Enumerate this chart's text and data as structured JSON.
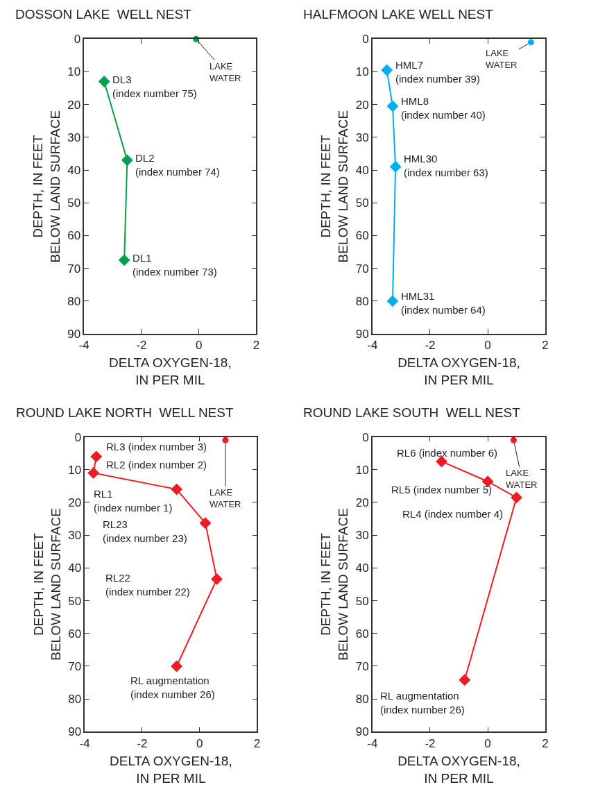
{
  "chart_data": [
    {
      "type": "line",
      "title": "DOSSON LAKE  WELL NEST",
      "xlabel": "DELTA OXYGEN-18,\nIN PER MIL",
      "ylabel": "DEPTH, IN FEET\nBELOW LAND SURFACE",
      "xlim": [
        -4,
        2
      ],
      "xticks": [
        -4,
        -2,
        0,
        2
      ],
      "ylim": [
        90,
        0
      ],
      "yticks": [
        0,
        10,
        20,
        30,
        40,
        50,
        60,
        70,
        80,
        90
      ],
      "line_style": "solid",
      "series": [
        {
          "color": "#00a04b",
          "marker": "diamond",
          "x": [
            -3.3,
            -2.5,
            -2.6
          ],
          "values": [
            13,
            37,
            67.5
          ]
        },
        {
          "type": "scatter",
          "color": "#00a04b",
          "marker": "circle",
          "x": [
            -0.1
          ],
          "values": [
            0
          ]
        }
      ],
      "annotations": [
        {
          "text": "DL3\n(index number 75)",
          "x": -3.3,
          "y": 13
        },
        {
          "text": "DL2\n(index number 74)",
          "x": -2.5,
          "y": 37
        },
        {
          "text": "DL1\n(index number 73)",
          "x": -2.6,
          "y": 67.5
        },
        {
          "text": "LAKE\nWATER",
          "x": -0.1,
          "y": 0
        }
      ]
    },
    {
      "type": "line",
      "title": "HALFMOON LAKE WELL NEST",
      "xlabel": "DELTA OXYGEN-18,\nIN PER MIL",
      "ylabel": "DEPTH, IN FEET\nBELOW LAND SURFACE",
      "xlim": [
        -4,
        2
      ],
      "xticks": [
        -4,
        -2,
        0,
        2
      ],
      "ylim": [
        90,
        0
      ],
      "yticks": [
        0,
        10,
        20,
        30,
        40,
        50,
        60,
        70,
        80,
        90
      ],
      "line_style": "solid",
      "series": [
        {
          "color": "#00aeef",
          "marker": "diamond",
          "x": [
            -3.5,
            -3.3,
            -3.2,
            -3.3
          ],
          "values": [
            9.5,
            20.5,
            39,
            80
          ]
        },
        {
          "type": "scatter",
          "color": "#00aeef",
          "marker": "circle",
          "x": [
            1.5
          ],
          "values": [
            1
          ]
        }
      ],
      "annotations": [
        {
          "text": "HML7\n(index number 39)",
          "x": -3.5,
          "y": 9.5
        },
        {
          "text": "HML8\n(index number 40)",
          "x": -3.3,
          "y": 20.5
        },
        {
          "text": "HML30\n(index number 63)",
          "x": -3.2,
          "y": 39
        },
        {
          "text": "HML31\n(index number 64)",
          "x": -3.3,
          "y": 80
        },
        {
          "text": "LAKE\nWATER",
          "x": 1.5,
          "y": 1
        }
      ]
    },
    {
      "type": "line",
      "title": "ROUND LAKE NORTH  WELL NEST",
      "xlabel": "DELTA OXYGEN-18,\nIN PER MIL",
      "ylabel": "DEPTH, IN FEET\nBELOW LAND SURFACE",
      "xlim": [
        -4,
        2
      ],
      "xticks": [
        -4,
        -2,
        0,
        2
      ],
      "ylim": [
        90,
        0
      ],
      "yticks": [
        0,
        10,
        20,
        30,
        40,
        50,
        60,
        70,
        80,
        90
      ],
      "line_style": "solid",
      "series": [
        {
          "color": "#ed1c24",
          "marker": "diamond",
          "x": [
            -3.6,
            -3.7,
            -0.8,
            0.2,
            0.6,
            -0.8
          ],
          "values": [
            6,
            11,
            16,
            26.3,
            43.4,
            70
          ]
        },
        {
          "type": "scatter",
          "color": "#ed1c24",
          "marker": "circle",
          "x": [
            0.9
          ],
          "values": [
            1
          ]
        }
      ],
      "annotations": [
        {
          "text": "RL3 (index number 3)",
          "x": -3.6,
          "y": 6
        },
        {
          "text": "RL2 (index number 2)",
          "x": -3.7,
          "y": 11
        },
        {
          "text": "RL1\n(index number 1)",
          "x": -0.8,
          "y": 16
        },
        {
          "text": "RL23\n(index number 23)",
          "x": 0.2,
          "y": 26.3
        },
        {
          "text": "RL22\n(index number 22)",
          "x": 0.6,
          "y": 43.4
        },
        {
          "text": "RL augmentation\n(index number 26)",
          "x": -0.8,
          "y": 70
        },
        {
          "text": "LAKE\nWATER",
          "x": 0.9,
          "y": 1
        }
      ]
    },
    {
      "type": "line",
      "title": "ROUND LAKE SOUTH  WELL NEST",
      "xlabel": "DELTA OXYGEN-18,\nIN PER MIL",
      "ylabel": "DEPTH, IN FEET\nBELOW LAND SURFACE",
      "xlim": [
        -4,
        2
      ],
      "xticks": [
        -4,
        -2,
        0,
        2
      ],
      "ylim": [
        90,
        0
      ],
      "yticks": [
        0,
        10,
        20,
        30,
        40,
        50,
        60,
        70,
        80,
        90
      ],
      "line_style": "solid",
      "series": [
        {
          "color": "#ed1c24",
          "marker": "diamond",
          "x": [
            -1.6,
            0,
            1,
            -0.8
          ],
          "values": [
            7.5,
            13.6,
            18.5,
            74.2
          ]
        },
        {
          "type": "scatter",
          "color": "#ed1c24",
          "marker": "circle",
          "x": [
            0.9
          ],
          "values": [
            1
          ]
        }
      ],
      "annotations": [
        {
          "text": "RL6 (index number 6)",
          "x": -1.6,
          "y": 7.5
        },
        {
          "text": "RL5 (index number 5)",
          "x": 0,
          "y": 13.6
        },
        {
          "text": "RL4 (index number 4)",
          "x": 1,
          "y": 18.5
        },
        {
          "text": "RL augmentation\n(index number 26)",
          "x": -0.8,
          "y": 74.2
        },
        {
          "text": "LAKE\nWATER",
          "x": 0.9,
          "y": 1
        }
      ]
    }
  ]
}
